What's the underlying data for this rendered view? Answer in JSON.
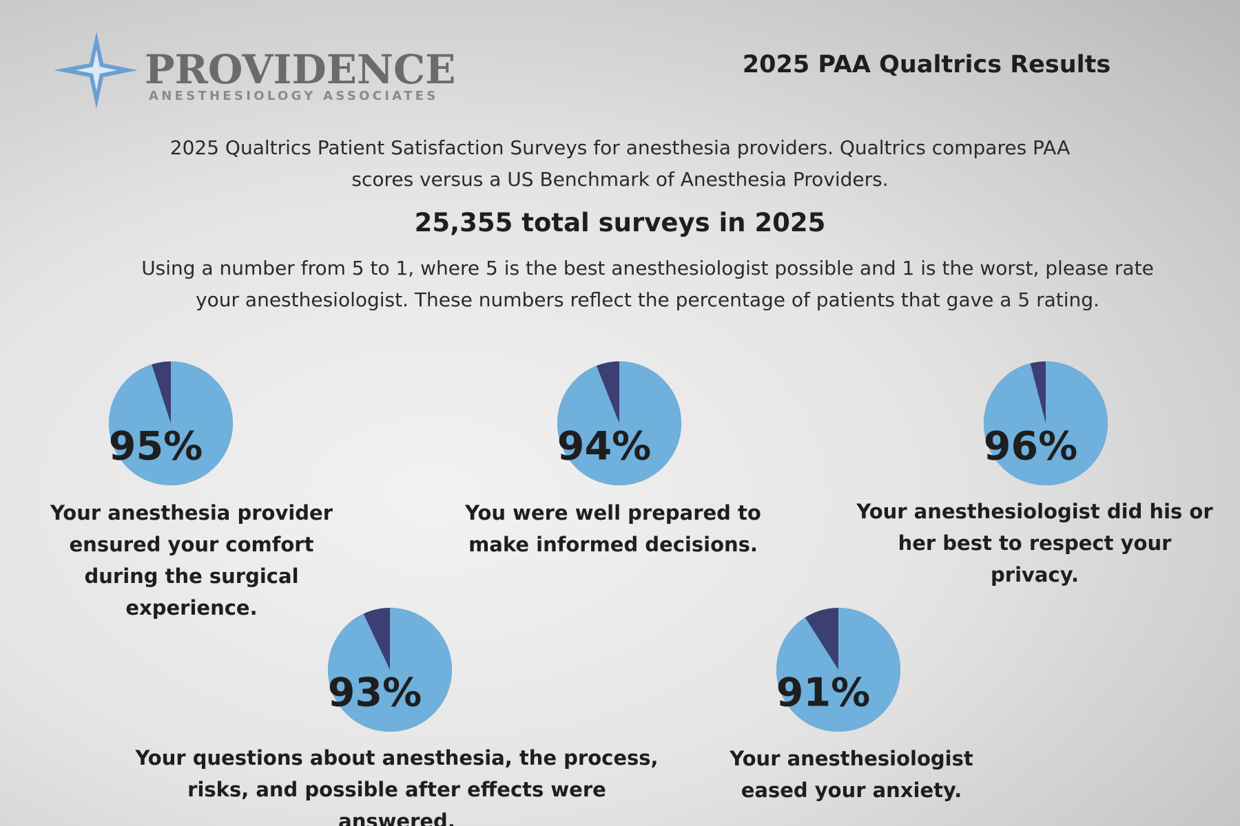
{
  "logo": {
    "name": "PROVIDENCE",
    "tagline": "ANESTHESIOLOGY ASSOCIATES"
  },
  "header": {
    "title": "2025 PAA Qualtrics Results"
  },
  "intro": "2025 Qualtrics Patient Satisfaction Surveys for anesthesia providers. Qualtrics compares PAA scores versus a US Benchmark of Anesthesia Providers.",
  "total": "25,355 total surveys in 2025",
  "question": "Using a number from 5 to 1, where 5 is the best anesthesiologist possible and 1 is the worst, please rate your anesthesiologist. These numbers reflect the percentage of patients that gave a 5 rating.",
  "chart_data": [
    {
      "type": "pie",
      "title": "Your anesthesia provider ensured your comfort during the surgical experience.",
      "values": [
        95
      ],
      "value_labels": [
        "95%"
      ],
      "colors": [
        "#6fb0dc",
        "#3b3f72"
      ]
    },
    {
      "type": "pie",
      "title": "You were well prepared to make informed decisions.",
      "values": [
        94
      ],
      "value_labels": [
        "94%"
      ],
      "colors": [
        "#6fb0dc",
        "#3b3f72"
      ]
    },
    {
      "type": "pie",
      "title": "Your anesthesiologist did his or her best to respect your privacy.",
      "values": [
        96
      ],
      "value_labels": [
        "96%"
      ],
      "colors": [
        "#6fb0dc",
        "#3b3f72"
      ]
    },
    {
      "type": "pie",
      "title": "Your questions about anesthesia, the process, risks, and possible after effects were answered.",
      "values": [
        93
      ],
      "value_labels": [
        "93%"
      ],
      "colors": [
        "#6fb0dc",
        "#3b3f72"
      ]
    },
    {
      "type": "pie",
      "title": "Your anesthesiologist eased your anxiety.",
      "values": [
        91
      ],
      "value_labels": [
        "91%"
      ],
      "colors": [
        "#6fb0dc",
        "#3b3f72"
      ]
    }
  ]
}
